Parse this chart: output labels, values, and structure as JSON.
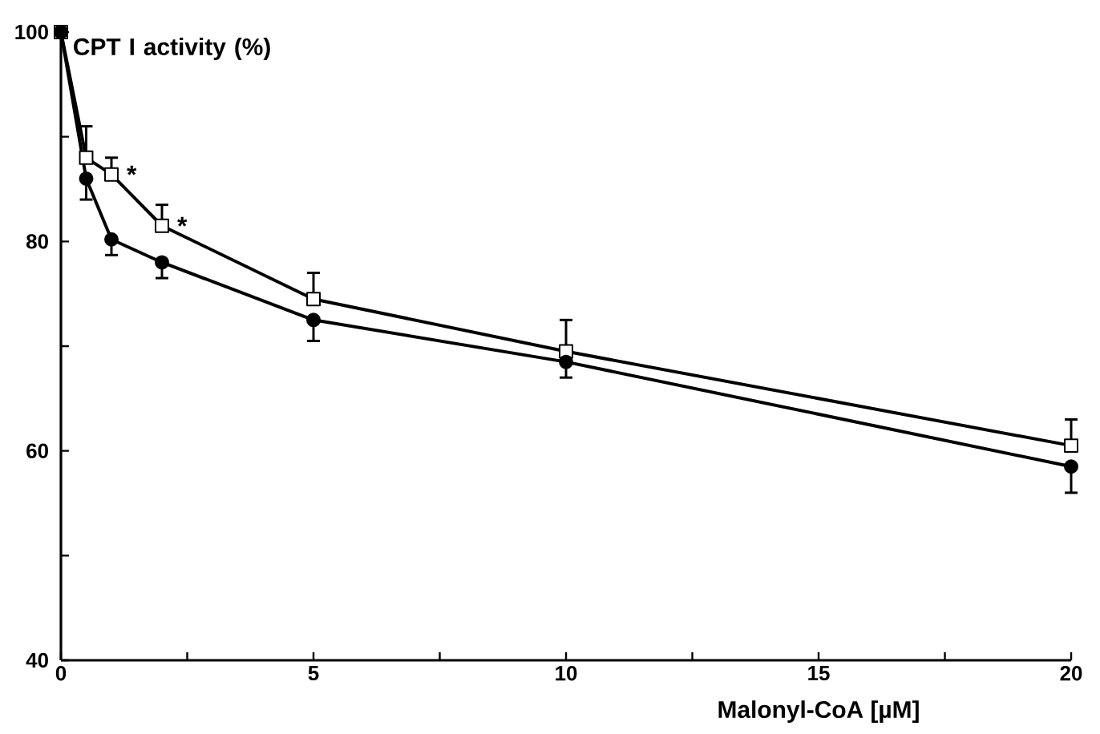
{
  "chart_data": {
    "type": "line",
    "ylabel": "CPT I activity (%)",
    "xlabel": "Malonyl-CoA [µM]",
    "x": [
      0,
      0.5,
      1,
      2,
      5,
      10,
      20
    ],
    "series": [
      {
        "color": "#000000",
        "marker": "square",
        "values": [
          100,
          88,
          86.4,
          81.5,
          74.5,
          69.5,
          60.5
        ],
        "errors": [
          null,
          [
            88,
            91
          ],
          [
            86.4,
            88
          ],
          [
            81.5,
            83.5
          ],
          [
            74.5,
            77
          ],
          [
            69.5,
            72.5
          ],
          [
            60.5,
            63
          ]
        ]
      },
      {
        "color": "#000000",
        "marker": "circle",
        "values": [
          100,
          86,
          80.2,
          78,
          72.5,
          68.5,
          58.5
        ],
        "errors": [
          null,
          [
            84,
            86
          ],
          [
            78.7,
            80.2
          ],
          [
            76.5,
            78
          ],
          [
            70.5,
            72.5
          ],
          [
            67,
            68.5
          ],
          [
            56,
            58.5
          ]
        ]
      }
    ],
    "xlim": [
      0,
      20
    ],
    "ylim": [
      40,
      100
    ],
    "xticks": [
      0,
      {
        "value": 2.5,
        "label": null
      },
      5,
      {
        "value": 7.5,
        "label": null
      },
      10,
      {
        "value": 12.5,
        "label": null
      },
      15,
      {
        "value": 17.5,
        "label": null
      },
      20
    ],
    "yticks": [
      40,
      {
        "value": 50,
        "label": null
      },
      60,
      {
        "value": 70,
        "label": null
      },
      80,
      {
        "value": 90,
        "label": null
      },
      100
    ],
    "annotations": [
      {
        "text": "*",
        "x": 1,
        "y": 86.4
      },
      {
        "text": "*",
        "x": 2,
        "y": 81.5
      }
    ],
    "grid": false,
    "line_style": "solid"
  }
}
